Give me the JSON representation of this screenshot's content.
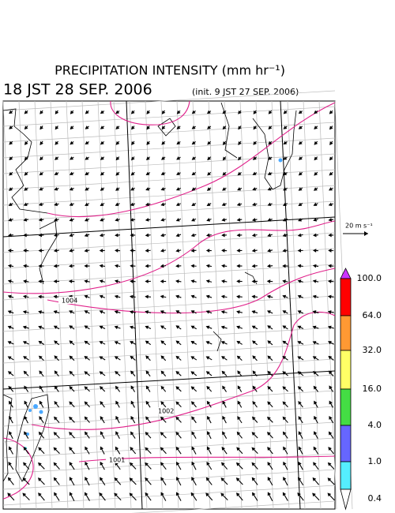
{
  "header": {
    "title": "PRECIPITATION INTENSITY (mm hr⁻¹)",
    "time": "18 JST 28 SEP. 2006",
    "init": "(init. 9 JST 27 SEP. 2006)"
  },
  "wind_scale": "20 m s⁻¹",
  "isobar_labels": [
    "1004",
    "1002",
    "1001"
  ],
  "colorbar": {
    "labels": [
      "100.0",
      "64.0",
      "32.0",
      "16.0",
      "4.0",
      "1.0",
      "0.4"
    ],
    "colors": [
      "#ff0000",
      "#ff9933",
      "#ffff66",
      "#44dd44",
      "#6666ff",
      "#55eeff"
    ],
    "over_color": "#cc33ff",
    "under_color": "#ffffff"
  }
}
